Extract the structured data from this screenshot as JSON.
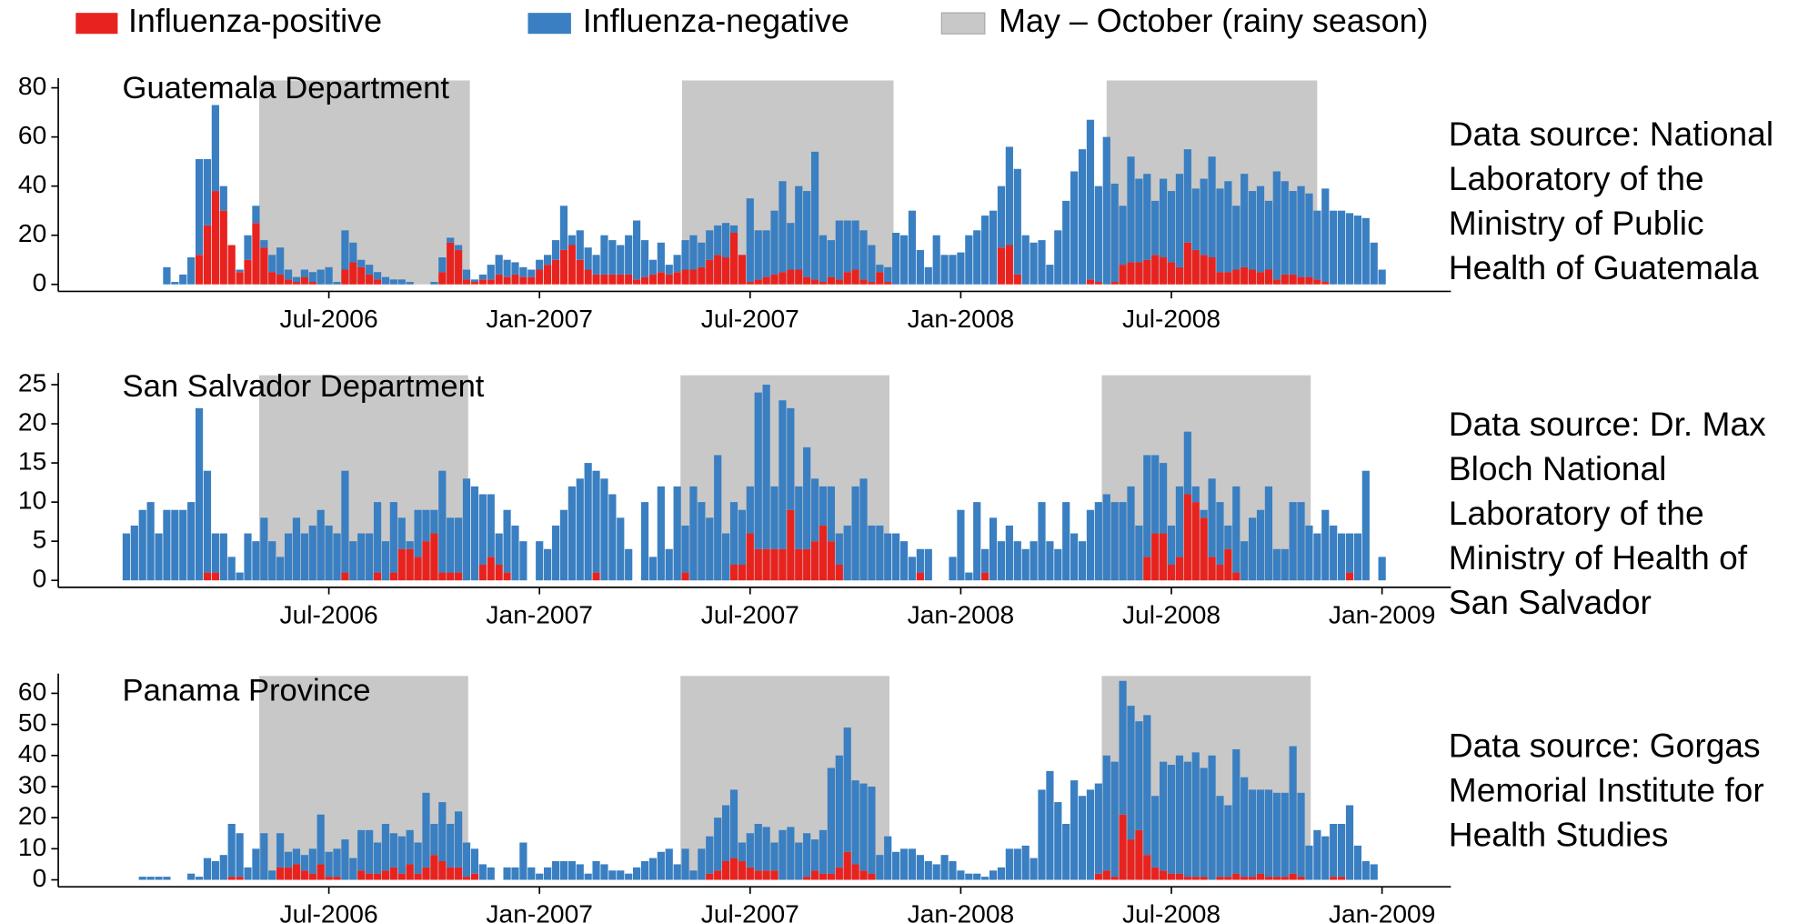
{
  "chart_data": [
    {
      "type": "bar",
      "stacked": true,
      "title": "Guatemala Department",
      "source_lines": [
        "Data source: National",
        "Laboratory of the",
        "Ministry of Public",
        "Health of Guatemala"
      ],
      "shaded_label": "May – October (rainy season)",
      "shaded_color": "#c8c8c8",
      "shaded": [
        [
          16.4,
          42.4
        ],
        [
          68.6,
          94.7
        ],
        [
          121,
          147
        ]
      ],
      "xlim": [
        -8.4,
        163.5
      ],
      "xticks": [
        {
          "value": 25,
          "label": "Jul-2006"
        },
        {
          "value": 51,
          "label": "Jan-2007"
        },
        {
          "value": 77,
          "label": "Jul-2007"
        },
        {
          "value": 103,
          "label": "Jan-2008"
        },
        {
          "value": 129,
          "label": "Jul-2008"
        }
      ],
      "ylim": [
        0,
        83
      ],
      "yticks": [
        0,
        20,
        40,
        60,
        80
      ],
      "series": [
        {
          "name": "Influenza-positive",
          "color": "#e8231f",
          "values": [
            null,
            null,
            null,
            null,
            null,
            0,
            0,
            0,
            0,
            12,
            24,
            38,
            30,
            16,
            5,
            10,
            25,
            15,
            5,
            4,
            2,
            1,
            3,
            1,
            0,
            0,
            0,
            6,
            9,
            7,
            4,
            2,
            0,
            0,
            0,
            0,
            0,
            0,
            0,
            5,
            17,
            14,
            2,
            1,
            2,
            2,
            4,
            3,
            4,
            3,
            3,
            6,
            8,
            10,
            14,
            16,
            10,
            6,
            4,
            4,
            4,
            4,
            4,
            2,
            3,
            4,
            5,
            4,
            5,
            6,
            6,
            7,
            10,
            12,
            11,
            21,
            12,
            1,
            2,
            3,
            4,
            5,
            6,
            6,
            3,
            2,
            1,
            3,
            2,
            5,
            6,
            2,
            1,
            5,
            1,
            0,
            0,
            0,
            0,
            0,
            0,
            0,
            0,
            0,
            0,
            0,
            0,
            0,
            15,
            16,
            4,
            0,
            0,
            0,
            0,
            0,
            0,
            0,
            0,
            2,
            1,
            0,
            1,
            8,
            9,
            9,
            10,
            12,
            11,
            9,
            7,
            17,
            14,
            12,
            11,
            5,
            5,
            6,
            7,
            6,
            5,
            6,
            2,
            4,
            4,
            3,
            3,
            2,
            1,
            0,
            0,
            0,
            0,
            0,
            0,
            0
          ]
        },
        {
          "name": "Influenza-negative",
          "color": "#3a7fc1",
          "values": [
            null,
            null,
            null,
            null,
            null,
            7,
            1,
            4,
            11,
            39,
            27,
            35,
            10,
            0,
            1,
            10,
            7,
            3,
            7,
            11,
            4,
            2,
            3,
            4,
            6,
            7,
            1,
            16,
            8,
            3,
            4,
            3,
            3,
            2,
            2,
            1,
            0,
            0,
            1,
            6,
            2,
            2,
            4,
            1,
            2,
            6,
            8,
            7,
            5,
            4,
            3,
            4,
            4,
            8,
            18,
            4,
            12,
            9,
            8,
            16,
            14,
            12,
            16,
            24,
            15,
            6,
            12,
            4,
            7,
            12,
            14,
            10,
            12,
            12,
            14,
            3,
            0,
            34,
            20,
            19,
            26,
            37,
            19,
            34,
            35,
            52,
            19,
            15,
            24,
            21,
            20,
            20,
            15,
            3,
            6,
            21,
            20,
            30,
            14,
            7,
            20,
            12,
            12,
            13,
            20,
            22,
            28,
            30,
            25,
            40,
            43,
            20,
            17,
            18,
            8,
            22,
            34,
            46,
            55,
            65,
            39,
            60,
            40,
            24,
            43,
            34,
            35,
            22,
            32,
            29,
            38,
            38,
            25,
            31,
            41,
            34,
            37,
            26,
            38,
            32,
            35,
            28,
            44,
            38,
            34,
            37,
            34,
            28,
            38,
            30,
            30,
            29,
            28,
            27,
            17,
            6
          ]
        }
      ]
    },
    {
      "type": "bar",
      "stacked": true,
      "title": "San Salvador Department",
      "source_lines": [
        "Data source: Dr. Max",
        "Bloch National",
        "Laboratory of the",
        "Ministry of Health of",
        "San Salvador"
      ],
      "shaded_color": "#c8c8c8",
      "shaded": [
        [
          16.4,
          42.2
        ],
        [
          68.4,
          94.2
        ],
        [
          120.4,
          146.2
        ]
      ],
      "xlim": [
        -8.4,
        163.5
      ],
      "xticks": [
        {
          "value": 25,
          "label": "Jul-2006"
        },
        {
          "value": 51,
          "label": "Jan-2007"
        },
        {
          "value": 77,
          "label": "Jul-2007"
        },
        {
          "value": 103,
          "label": "Jan-2008"
        },
        {
          "value": 129,
          "label": "Jul-2008"
        },
        {
          "value": 155,
          "label": "Jan-2009"
        }
      ],
      "ylim": [
        0,
        26.2
      ],
      "yticks": [
        0,
        5,
        10,
        15,
        20,
        25
      ],
      "series": [
        {
          "name": "Influenza-positive",
          "color": "#e8231f",
          "values": [
            0,
            0,
            0,
            0,
            0,
            0,
            0,
            0,
            0,
            0,
            1,
            1,
            0,
            0,
            0,
            0,
            0,
            0,
            0,
            0,
            0,
            0,
            0,
            0,
            0,
            0,
            0,
            1,
            0,
            0,
            0,
            1,
            0,
            1,
            4,
            4,
            3,
            5,
            6,
            1,
            1,
            1,
            0,
            0,
            2,
            3,
            2,
            1,
            0,
            0,
            null,
            0,
            0,
            0,
            0,
            0,
            0,
            0,
            1,
            0,
            0,
            0,
            0,
            null,
            0,
            0,
            0,
            0,
            0,
            1,
            0,
            0,
            0,
            0,
            0,
            2,
            2,
            6,
            4,
            4,
            4,
            4,
            9,
            4,
            4,
            5,
            7,
            5,
            2,
            0,
            0,
            0,
            0,
            0,
            0,
            0,
            0,
            0,
            1,
            0,
            null,
            null,
            0,
            0,
            0,
            0,
            1,
            0,
            0,
            0,
            0,
            0,
            0,
            0,
            0,
            0,
            0,
            0,
            0,
            0,
            0,
            0,
            0,
            0,
            0,
            0,
            3,
            6,
            6,
            2,
            3,
            11,
            10,
            8,
            3,
            2,
            4,
            1,
            0,
            0,
            0,
            0,
            0,
            0,
            0,
            0,
            0,
            0,
            0,
            0,
            0,
            1,
            0,
            0,
            null,
            0
          ]
        },
        {
          "name": "Influenza-negative",
          "color": "#3a7fc1",
          "values": [
            6,
            7,
            9,
            10,
            6,
            9,
            9,
            9,
            10,
            22,
            13,
            5,
            6,
            3,
            1,
            6,
            5,
            8,
            5,
            3,
            6,
            8,
            6,
            7,
            9,
            7,
            6,
            13,
            5,
            6,
            6,
            9,
            5,
            9,
            4,
            1,
            6,
            4,
            3,
            13,
            7,
            7,
            13,
            12,
            9,
            8,
            4,
            8,
            7,
            5,
            null,
            5,
            4,
            7,
            9,
            12,
            13,
            15,
            13,
            13,
            11,
            8,
            4,
            null,
            10,
            3,
            12,
            4,
            12,
            6,
            12,
            10,
            8,
            16,
            6,
            8,
            7,
            6,
            20,
            21,
            8,
            19,
            13,
            8,
            13,
            8,
            5,
            7,
            4,
            7,
            12,
            13,
            7,
            7,
            6,
            6,
            5,
            3,
            3,
            4,
            null,
            null,
            3,
            9,
            1,
            10,
            3,
            8,
            5,
            7,
            5,
            4,
            5,
            10,
            5,
            4,
            10,
            6,
            5,
            9,
            10,
            11,
            10,
            10,
            12,
            7,
            13,
            10,
            9,
            5,
            9,
            8,
            2,
            1,
            10,
            8,
            3,
            11,
            5,
            8,
            9,
            12,
            4,
            4,
            10,
            10,
            7,
            6,
            9,
            7,
            6,
            5,
            6,
            14,
            null,
            3
          ]
        }
      ]
    },
    {
      "type": "bar",
      "stacked": true,
      "title": "Panama Province",
      "source_lines": [
        "Data source: Gorgas",
        "Memorial Institute for",
        "Health Studies"
      ],
      "shaded_color": "#c8c8c8",
      "shaded": [
        [
          16.4,
          42.2
        ],
        [
          68.4,
          94.2
        ],
        [
          120.4,
          146.2
        ]
      ],
      "xlim": [
        -8.4,
        163.5
      ],
      "xticks": [
        {
          "value": 25,
          "label": "Jul-2006"
        },
        {
          "value": 51,
          "label": "Jan-2007"
        },
        {
          "value": 77,
          "label": "Jul-2007"
        },
        {
          "value": 103,
          "label": "Jan-2008"
        },
        {
          "value": 129,
          "label": "Jul-2008"
        },
        {
          "value": 155,
          "label": "Jan-2009"
        }
      ],
      "ylim": [
        0,
        65.6
      ],
      "yticks": [
        0,
        10,
        20,
        30,
        40,
        50,
        60
      ],
      "series": [
        {
          "name": "Influenza-positive",
          "color": "#e8231f",
          "values": [
            null,
            null,
            0,
            0,
            0,
            0,
            null,
            null,
            0,
            0,
            0,
            0,
            0,
            1,
            1,
            0,
            0,
            0,
            0,
            4,
            4,
            5,
            3,
            2,
            5,
            1,
            1,
            0,
            0,
            3,
            2,
            2,
            3,
            4,
            2,
            5,
            2,
            4,
            8,
            6,
            4,
            4,
            1,
            2,
            0,
            0,
            null,
            0,
            0,
            0,
            0,
            0,
            0,
            0,
            0,
            0,
            0,
            0,
            0,
            0,
            0,
            0,
            0,
            0,
            0,
            0,
            0,
            0,
            0,
            0,
            0,
            0,
            2,
            3,
            6,
            7,
            6,
            4,
            3,
            3,
            3,
            0,
            0,
            0,
            1,
            3,
            2,
            2,
            4,
            9,
            5,
            3,
            2,
            0,
            0,
            0,
            0,
            0,
            0,
            0,
            0,
            0,
            0,
            0,
            0,
            0,
            0,
            0,
            0,
            0,
            0,
            0,
            0,
            0,
            0,
            0,
            0,
            0,
            0,
            0,
            2,
            3,
            1,
            21,
            13,
            16,
            8,
            4,
            3,
            2,
            2,
            1,
            1,
            1,
            0,
            1,
            1,
            2,
            1,
            1,
            2,
            1,
            1,
            1,
            2,
            1,
            0,
            0,
            0,
            1,
            1,
            0,
            0,
            0,
            0,
            null
          ]
        },
        {
          "name": "Influenza-negative",
          "color": "#3a7fc1",
          "values": [
            null,
            null,
            1,
            1,
            1,
            1,
            null,
            null,
            2,
            1,
            7,
            6,
            8,
            17,
            14,
            4,
            10,
            15,
            3,
            11,
            5,
            5,
            5,
            8,
            16,
            8,
            9,
            13,
            7,
            13,
            14,
            10,
            15,
            11,
            12,
            11,
            10,
            24,
            10,
            19,
            14,
            18,
            11,
            8,
            5,
            4,
            null,
            4,
            4,
            12,
            4,
            2,
            4,
            6,
            6,
            6,
            5,
            2,
            6,
            5,
            3,
            3,
            2,
            4,
            6,
            7,
            9,
            10,
            5,
            10,
            3,
            10,
            12,
            17,
            18,
            22,
            6,
            11,
            15,
            14,
            9,
            16,
            17,
            12,
            14,
            10,
            14,
            34,
            36,
            40,
            27,
            28,
            28,
            8,
            14,
            9,
            10,
            10,
            8,
            6,
            5,
            8,
            6,
            3,
            2,
            2,
            1,
            3,
            4,
            10,
            10,
            11,
            7,
            29,
            35,
            25,
            18,
            32,
            27,
            29,
            29,
            37,
            37,
            43,
            43,
            35,
            45,
            23,
            35,
            35,
            38,
            37,
            40,
            35,
            40,
            26,
            23,
            40,
            32,
            28,
            27,
            28,
            27,
            27,
            41,
            27,
            11,
            16,
            14,
            17,
            17,
            24,
            11,
            6,
            5,
            null
          ]
        }
      ]
    }
  ]
}
